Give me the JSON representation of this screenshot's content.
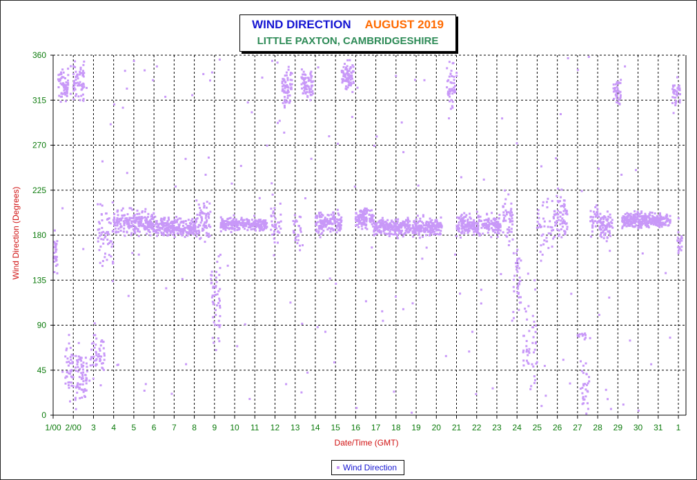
{
  "chart_data": {
    "type": "scatter",
    "title": "WIND DIRECTION",
    "title_month": "AUGUST 2019",
    "subtitle": "LITTLE PAXTON, CAMBRIDGESHIRE",
    "xlabel": "Date/Time (GMT)",
    "ylabel": "Wind Direction (Degrees)",
    "ylim": [
      0,
      360
    ],
    "xlim": [
      0.6,
      31.4
    ],
    "y_ticks": [
      0,
      45,
      90,
      135,
      180,
      225,
      270,
      315,
      360
    ],
    "x_ticks": [
      {
        "x": 1,
        "label": "1/00"
      },
      {
        "x": 2,
        "label": "2/00"
      },
      {
        "x": 3,
        "label": "3"
      },
      {
        "x": 4,
        "label": "4"
      },
      {
        "x": 5,
        "label": "5"
      },
      {
        "x": 6,
        "label": "6"
      },
      {
        "x": 7,
        "label": "7"
      },
      {
        "x": 8,
        "label": "8"
      },
      {
        "x": 9,
        "label": "9"
      },
      {
        "x": 10,
        "label": "10"
      },
      {
        "x": 11,
        "label": "11"
      },
      {
        "x": 12,
        "label": "12"
      },
      {
        "x": 13,
        "label": "13"
      },
      {
        "x": 14,
        "label": "14"
      },
      {
        "x": 15,
        "label": "15"
      },
      {
        "x": 16,
        "label": "16"
      },
      {
        "x": 17,
        "label": "17"
      },
      {
        "x": 18,
        "label": "18"
      },
      {
        "x": 19,
        "label": "19"
      },
      {
        "x": 20,
        "label": "20"
      },
      {
        "x": 21,
        "label": "21"
      },
      {
        "x": 22,
        "label": "22"
      },
      {
        "x": 23,
        "label": "23"
      },
      {
        "x": 24,
        "label": "24"
      },
      {
        "x": 25,
        "label": "25"
      },
      {
        "x": 26,
        "label": "26"
      },
      {
        "x": 27,
        "label": "27"
      },
      {
        "x": 28,
        "label": "28"
      },
      {
        "x": 29,
        "label": "29"
      },
      {
        "x": 30,
        "label": "30"
      },
      {
        "x": 31,
        "label": "31"
      },
      {
        "x": 32,
        "label": "1"
      }
    ],
    "grid": true,
    "legend_position": "bottom-center",
    "series": [
      {
        "name": "Wind Direction",
        "color": "#c898f8",
        "clusters": [
          {
            "x0": 1.0,
            "x1": 1.25,
            "center": 160,
            "spread": 18,
            "count": 28
          },
          {
            "x0": 1.25,
            "x1": 1.75,
            "center": 330,
            "spread": 12,
            "count": 60
          },
          {
            "x0": 1.6,
            "x1": 2.0,
            "center": 45,
            "spread": 25,
            "count": 40
          },
          {
            "x0": 2.0,
            "x1": 2.55,
            "center": 335,
            "spread": 15,
            "count": 60
          },
          {
            "x0": 2.1,
            "x1": 2.7,
            "center": 40,
            "spread": 25,
            "count": 70
          },
          {
            "x0": 2.8,
            "x1": 3.55,
            "center": 60,
            "spread": 20,
            "count": 50
          },
          {
            "x0": 3.2,
            "x1": 4.0,
            "center": 180,
            "spread": 30,
            "count": 60
          },
          {
            "x0": 4.0,
            "x1": 6.0,
            "center": 192,
            "spread": 10,
            "count": 230
          },
          {
            "x0": 6.0,
            "x1": 8.1,
            "center": 188,
            "spread": 7,
            "count": 250
          },
          {
            "x0": 8.1,
            "x1": 8.8,
            "center": 195,
            "spread": 18,
            "count": 70
          },
          {
            "x0": 8.8,
            "x1": 9.3,
            "center": 120,
            "spread": 45,
            "count": 50
          },
          {
            "x0": 9.3,
            "x1": 11.6,
            "center": 191,
            "spread": 5,
            "count": 260
          },
          {
            "x0": 11.8,
            "x1": 12.3,
            "center": 190,
            "spread": 20,
            "count": 35
          },
          {
            "x0": 12.35,
            "x1": 12.85,
            "center": 328,
            "spread": 14,
            "count": 70
          },
          {
            "x0": 12.9,
            "x1": 13.3,
            "center": 185,
            "spread": 15,
            "count": 25
          },
          {
            "x0": 13.3,
            "x1": 13.9,
            "center": 332,
            "spread": 12,
            "count": 70
          },
          {
            "x0": 14.0,
            "x1": 15.3,
            "center": 192,
            "spread": 9,
            "count": 150
          },
          {
            "x0": 15.3,
            "x1": 15.9,
            "center": 338,
            "spread": 10,
            "count": 80
          },
          {
            "x0": 16.0,
            "x1": 16.9,
            "center": 197,
            "spread": 8,
            "count": 120
          },
          {
            "x0": 16.9,
            "x1": 20.3,
            "center": 188,
            "spread": 7,
            "count": 420
          },
          {
            "x0": 20.5,
            "x1": 20.95,
            "center": 330,
            "spread": 18,
            "count": 45
          },
          {
            "x0": 21.0,
            "x1": 23.2,
            "center": 190,
            "spread": 9,
            "count": 260
          },
          {
            "x0": 23.3,
            "x1": 23.8,
            "center": 195,
            "spread": 20,
            "count": 45
          },
          {
            "x0": 23.8,
            "x1": 24.2,
            "center": 135,
            "spread": 30,
            "count": 35
          },
          {
            "x0": 24.3,
            "x1": 25.0,
            "center": 70,
            "spread": 40,
            "count": 45
          },
          {
            "x0": 25.0,
            "x1": 25.8,
            "center": 188,
            "spread": 25,
            "count": 40
          },
          {
            "x0": 25.8,
            "x1": 26.5,
            "center": 200,
            "spread": 20,
            "count": 70
          },
          {
            "x0": 27.0,
            "x1": 27.4,
            "center": 80,
            "spread": 3,
            "count": 12
          },
          {
            "x0": 27.1,
            "x1": 27.6,
            "center": 30,
            "spread": 20,
            "count": 30
          },
          {
            "x0": 27.6,
            "x1": 28.0,
            "center": 195,
            "spread": 12,
            "count": 30
          },
          {
            "x0": 28.0,
            "x1": 28.75,
            "center": 190,
            "spread": 10,
            "count": 80
          },
          {
            "x0": 28.75,
            "x1": 29.15,
            "center": 325,
            "spread": 14,
            "count": 40
          },
          {
            "x0": 29.2,
            "x1": 31.6,
            "center": 195,
            "spread": 6,
            "count": 320
          },
          {
            "x0": 31.7,
            "x1": 32.1,
            "center": 322,
            "spread": 12,
            "count": 40
          },
          {
            "x0": 31.95,
            "x1": 32.2,
            "center": 175,
            "spread": 15,
            "count": 20
          }
        ]
      }
    ]
  },
  "legend": {
    "label": "Wind Direction"
  }
}
